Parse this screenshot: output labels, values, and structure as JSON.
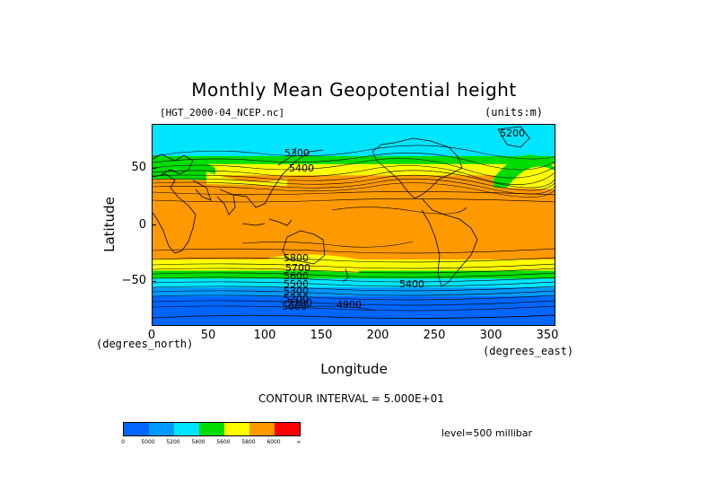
{
  "title": "Monthly Mean Geopotential height",
  "file_label": "[HGT_2000-04_NCEP.nc]",
  "units_label": "(units:m)",
  "y_axis": {
    "label": "Latitude",
    "unit_label": "(degrees_north)",
    "ticks": [
      "50",
      "0",
      "−50"
    ]
  },
  "x_axis": {
    "label": "Longitude",
    "unit_label": "(degrees_east)",
    "ticks": [
      "0",
      "50",
      "100",
      "150",
      "200",
      "250",
      "300",
      "350"
    ]
  },
  "contour_labels": [
    "5300",
    "5400",
    "5800",
    "5700",
    "5600",
    "5500",
    "5400",
    "5300",
    "5200",
    "5100",
    "5000",
    "4900",
    "5200"
  ],
  "contour_interval": "CONTOUR INTERVAL = 5.000E+01",
  "level": "level=500 millibar",
  "colorbar": {
    "labels": [
      "0",
      "5000",
      "5200",
      "5400",
      "5600",
      "5800",
      "6000",
      "∞"
    ],
    "colors": [
      "#0066ff",
      "#0099ff",
      "#00e5ff",
      "#00dd00",
      "#ffff00",
      "#ff9900",
      "#ff0000"
    ]
  },
  "field_bands": {
    "lat_edges_deg": [
      90,
      78,
      62,
      55,
      45,
      38,
      30,
      20,
      0,
      -20,
      -30,
      -40,
      -47,
      -55,
      -63,
      -72,
      -90
    ],
    "colors": [
      "#00e5ff",
      "#00e5ff",
      "#00dd00",
      "#ffff00",
      "#ff9900",
      "#ff9900",
      "#ff9900",
      "#ff9900",
      "#ff9900",
      "#ff9900",
      "#ffff00",
      "#00dd00",
      "#00e5ff",
      "#0099ff",
      "#0066ff",
      "#0066ff"
    ]
  }
}
